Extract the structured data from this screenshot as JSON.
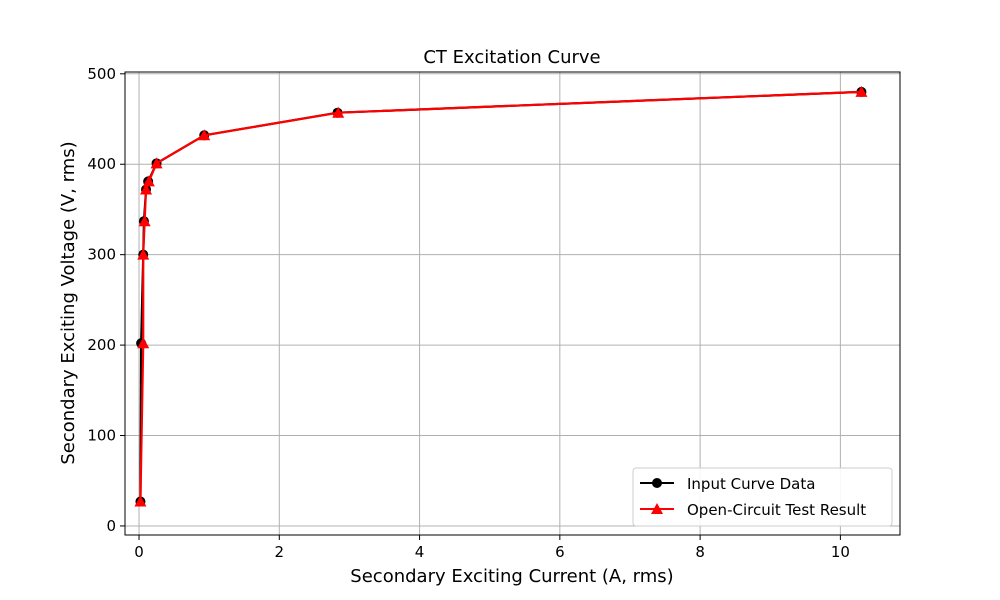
{
  "chart_data": {
    "type": "line",
    "title": "CT Excitation Curve",
    "xlabel": "Secondary Exciting Current (A, rms)",
    "ylabel": "Secondary Exciting Voltage (V, rms)",
    "xlim": [
      -0.2,
      10.85
    ],
    "ylim": [
      -10,
      502
    ],
    "xticks": [
      0,
      2,
      4,
      6,
      8,
      10
    ],
    "yticks": [
      0,
      100,
      200,
      300,
      400,
      500
    ],
    "grid": true,
    "legend_position": "lower right",
    "series": [
      {
        "name": "Input Curve Data",
        "color": "#000000",
        "marker": "circle",
        "x": [
          0.02,
          0.03,
          0.06,
          0.07,
          0.1,
          0.13,
          0.25,
          0.93,
          2.83,
          10.3
        ],
        "y": [
          27,
          202,
          300,
          337,
          372,
          381,
          401,
          432,
          457,
          480
        ]
      },
      {
        "name": "Open-Circuit Test Result",
        "color": "#ff0000",
        "marker": "triangle",
        "x": [
          0.02,
          0.06,
          0.06,
          0.08,
          0.1,
          0.14,
          0.25,
          0.93,
          2.84,
          10.3
        ],
        "y": [
          27,
          202,
          300,
          337,
          372,
          381,
          401,
          432,
          457,
          480
        ]
      }
    ]
  }
}
